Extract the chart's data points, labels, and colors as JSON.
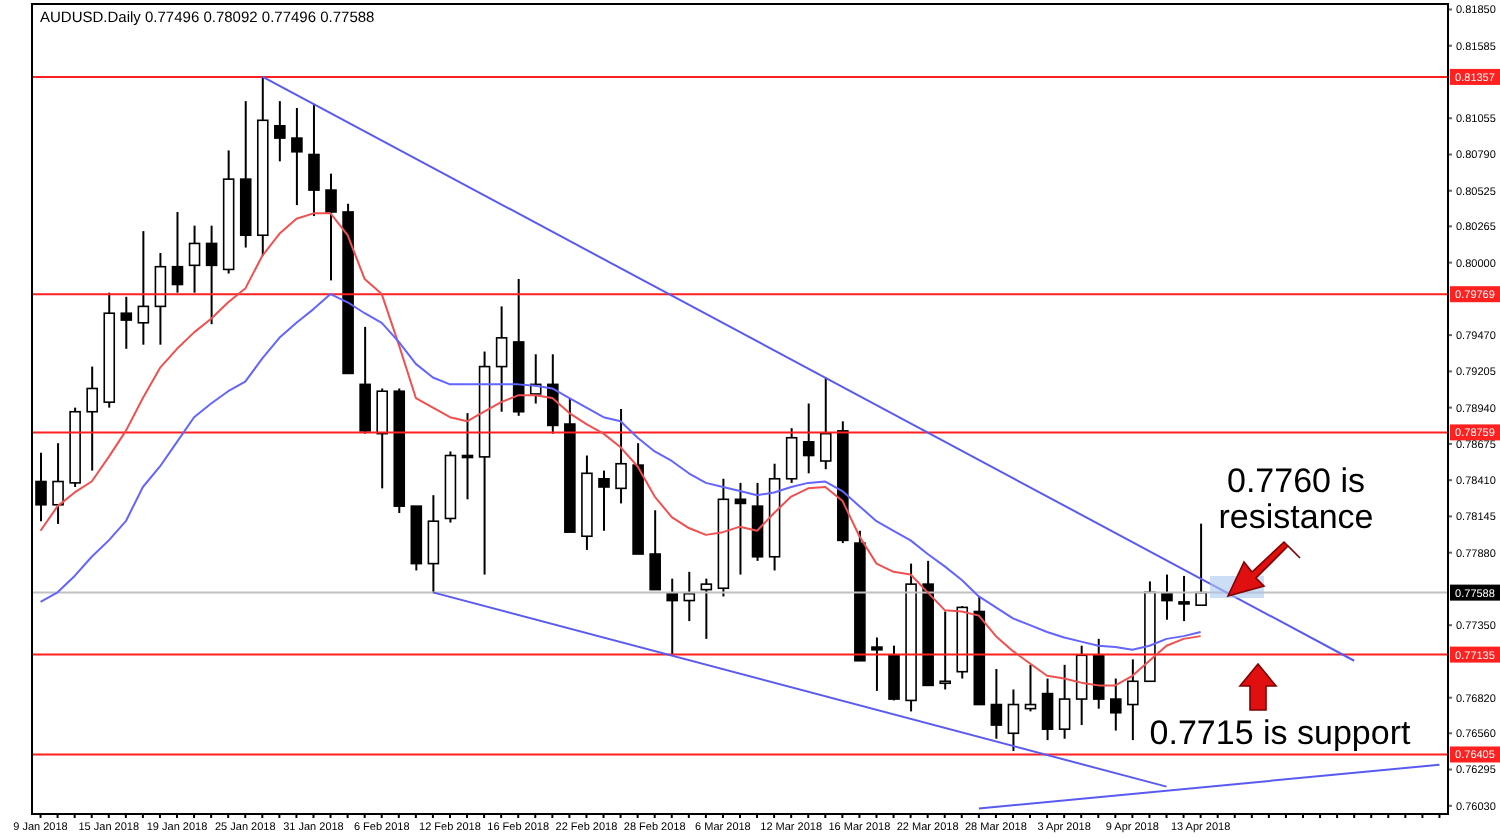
{
  "chart_data": {
    "type": "candlestick",
    "title": "AUDUSD.Daily 0.77496 0.78092 0.77496 0.77588",
    "categories": [
      "9 Jan 2018",
      null,
      null,
      null,
      "15 Jan 2018",
      null,
      null,
      null,
      "19 Jan 2018",
      null,
      null,
      null,
      "25 Jan 2018",
      null,
      null,
      null,
      "31 Jan 2018",
      null,
      null,
      null,
      "6 Feb 2018",
      null,
      null,
      null,
      "12 Feb 2018",
      null,
      null,
      null,
      "16 Feb 2018",
      null,
      null,
      null,
      "22 Feb 2018",
      null,
      null,
      null,
      "28 Feb 2018",
      null,
      null,
      null,
      "6 Mar 2018",
      null,
      null,
      null,
      "12 Mar 2018",
      null,
      null,
      null,
      "16 Mar 2018",
      null,
      null,
      null,
      "22 Mar 2018",
      null,
      null,
      null,
      "28 Mar 2018",
      null,
      null,
      null,
      "3 Apr 2018",
      null,
      null,
      null,
      "9 Apr 2018",
      null,
      null,
      null,
      "13 Apr 2018",
      null,
      null,
      null,
      null,
      null,
      null,
      null,
      null,
      null,
      null,
      null,
      null,
      null,
      null
    ],
    "ohlc": [
      [
        0.784,
        0.7861,
        0.7811,
        0.7823
      ],
      [
        0.7823,
        0.7868,
        0.7809,
        0.784
      ],
      [
        0.7839,
        0.7894,
        0.7836,
        0.7891
      ],
      [
        0.7891,
        0.7924,
        0.7848,
        0.7908
      ],
      [
        0.7898,
        0.7978,
        0.7894,
        0.7963
      ],
      [
        0.7963,
        0.7975,
        0.7937,
        0.7958
      ],
      [
        0.7956,
        0.8023,
        0.794,
        0.7968
      ],
      [
        0.7968,
        0.8007,
        0.794,
        0.7997
      ],
      [
        0.7997,
        0.8037,
        0.7978,
        0.7984
      ],
      [
        0.7998,
        0.8027,
        0.7978,
        0.8014
      ],
      [
        0.8014,
        0.8027,
        0.7955,
        0.7998
      ],
      [
        0.7995,
        0.8082,
        0.7992,
        0.8061
      ],
      [
        0.8061,
        0.8118,
        0.8011,
        0.802
      ],
      [
        0.802,
        0.8136,
        0.8005,
        0.8104
      ],
      [
        0.81,
        0.8118,
        0.8074,
        0.8091
      ],
      [
        0.8091,
        0.8113,
        0.8042,
        0.8081
      ],
      [
        0.8079,
        0.8116,
        0.8034,
        0.8053
      ],
      [
        0.8053,
        0.8065,
        0.7987,
        0.8037
      ],
      [
        0.8037,
        0.8043,
        0.7919,
        0.7919
      ],
      [
        0.7911,
        0.7953,
        0.7875,
        0.7877
      ],
      [
        0.7875,
        0.7908,
        0.7835,
        0.7906
      ],
      [
        0.7906,
        0.7908,
        0.7817,
        0.7822
      ],
      [
        0.7822,
        0.7822,
        0.7775,
        0.778
      ],
      [
        0.778,
        0.783,
        0.7759,
        0.7811
      ],
      [
        0.7813,
        0.7862,
        0.781,
        0.7859
      ],
      [
        0.7859,
        0.789,
        0.7827,
        0.7858
      ],
      [
        0.7858,
        0.7935,
        0.7772,
        0.7924
      ],
      [
        0.7924,
        0.7968,
        0.7891,
        0.7945
      ],
      [
        0.7942,
        0.7988,
        0.7888,
        0.7891
      ],
      [
        0.7904,
        0.7933,
        0.7897,
        0.7911
      ],
      [
        0.7911,
        0.7933,
        0.7875,
        0.7881
      ],
      [
        0.7882,
        0.7901,
        0.7803,
        0.7803
      ],
      [
        0.78,
        0.7859,
        0.779,
        0.7846
      ],
      [
        0.7842,
        0.7848,
        0.7804,
        0.7836
      ],
      [
        0.7835,
        0.7893,
        0.7824,
        0.7853
      ],
      [
        0.7852,
        0.7868,
        0.7787,
        0.7787
      ],
      [
        0.7787,
        0.7819,
        0.7761,
        0.7761
      ],
      [
        0.7758,
        0.7769,
        0.7713,
        0.7753
      ],
      [
        0.7753,
        0.7774,
        0.7738,
        0.7758
      ],
      [
        0.7761,
        0.7769,
        0.7725,
        0.7765
      ],
      [
        0.7762,
        0.7842,
        0.7756,
        0.7827
      ],
      [
        0.7827,
        0.7839,
        0.7772,
        0.7824
      ],
      [
        0.7822,
        0.7839,
        0.7782,
        0.7785
      ],
      [
        0.7785,
        0.7853,
        0.7775,
        0.7842
      ],
      [
        0.7842,
        0.7879,
        0.7839,
        0.7872
      ],
      [
        0.7869,
        0.7897,
        0.7846,
        0.7859
      ],
      [
        0.7855,
        0.7916,
        0.7849,
        0.7875
      ],
      [
        0.7877,
        0.7884,
        0.7795,
        0.7797
      ],
      [
        0.7795,
        0.7804,
        0.7709,
        0.7709
      ],
      [
        0.7719,
        0.7726,
        0.7687,
        0.7717
      ],
      [
        0.7713,
        0.772,
        0.768,
        0.7681
      ],
      [
        0.768,
        0.778,
        0.7672,
        0.7765
      ],
      [
        0.7765,
        0.7782,
        0.7691,
        0.7691
      ],
      [
        0.7693,
        0.7745,
        0.7688,
        0.7694
      ],
      [
        0.7701,
        0.7749,
        0.7696,
        0.7748
      ],
      [
        0.7745,
        0.7756,
        0.7677,
        0.7677
      ],
      [
        0.7677,
        0.7703,
        0.7652,
        0.7662
      ],
      [
        0.7656,
        0.7688,
        0.7643,
        0.7677
      ],
      [
        0.7674,
        0.7706,
        0.7672,
        0.7677
      ],
      [
        0.7685,
        0.7696,
        0.7651,
        0.7659
      ],
      [
        0.7659,
        0.7706,
        0.7652,
        0.7681
      ],
      [
        0.7681,
        0.772,
        0.7662,
        0.7713
      ],
      [
        0.7713,
        0.7725,
        0.7674,
        0.7681
      ],
      [
        0.7681,
        0.7696,
        0.7658,
        0.7671
      ],
      [
        0.7677,
        0.771,
        0.7651,
        0.7694
      ],
      [
        0.7694,
        0.7767,
        0.7694,
        0.7759
      ],
      [
        0.7758,
        0.7772,
        0.7739,
        0.7753
      ],
      [
        0.7752,
        0.7771,
        0.7738,
        0.7751
      ],
      [
        0.77496,
        0.78092,
        0.77496,
        0.77588
      ],
      null,
      null,
      null,
      null,
      null,
      null,
      null,
      null,
      null,
      null,
      null,
      null,
      null,
      null
    ],
    "series": [
      {
        "type": "line",
        "color": "#f05050",
        "values": [
          0.7804,
          0.7822,
          0.7832,
          0.784,
          0.7858,
          0.7877,
          0.7901,
          0.7923,
          0.7937,
          0.7949,
          0.7959,
          0.7971,
          0.7981,
          0.8005,
          0.8021,
          0.8032,
          0.8036,
          0.8036,
          0.802,
          0.7988,
          0.7977,
          0.794,
          0.7901,
          0.7894,
          0.7887,
          0.7884,
          0.7891,
          0.7898,
          0.7903,
          0.7903,
          0.7901,
          0.789,
          0.7882,
          0.7875,
          0.7865,
          0.7851,
          0.7829,
          0.7814,
          0.7806,
          0.7801,
          0.7803,
          0.7807,
          0.7804,
          0.7817,
          0.7829,
          0.7835,
          0.7836,
          0.7826,
          0.78,
          0.778,
          0.7774,
          0.7772,
          0.7759,
          0.7746,
          0.7745,
          0.7742,
          0.7727,
          0.7716,
          0.7707,
          0.7698,
          0.7696,
          0.7693,
          0.7691,
          0.7691,
          0.7698,
          0.7709,
          0.772,
          0.7725,
          0.7727,
          null,
          null,
          null,
          null,
          null,
          null,
          null,
          null,
          null,
          null,
          null,
          null,
          null,
          null
        ]
      },
      {
        "type": "line",
        "color": "#6464ff",
        "values": [
          0.7752,
          0.7759,
          0.7771,
          0.7785,
          0.7797,
          0.7811,
          0.7836,
          0.7851,
          0.7869,
          0.7887,
          0.7897,
          0.7906,
          0.7913,
          0.793,
          0.7945,
          0.7956,
          0.7966,
          0.7977,
          0.7971,
          0.7963,
          0.7956,
          0.7942,
          0.7926,
          0.7916,
          0.7911,
          0.7911,
          0.7911,
          0.7911,
          0.7911,
          0.791,
          0.7908,
          0.7901,
          0.7894,
          0.7887,
          0.7884,
          0.7872,
          0.7862,
          0.7855,
          0.7846,
          0.7839,
          0.7836,
          0.7833,
          0.783,
          0.7832,
          0.7836,
          0.7839,
          0.784,
          0.7833,
          0.7822,
          0.7811,
          0.7804,
          0.7797,
          0.7787,
          0.7778,
          0.7768,
          0.7756,
          0.7748,
          0.774,
          0.7735,
          0.773,
          0.7726,
          0.7723,
          0.772,
          0.7719,
          0.7717,
          0.772,
          0.7725,
          0.7727,
          0.773,
          null,
          null,
          null,
          null,
          null,
          null,
          null,
          null,
          null,
          null,
          null,
          null,
          null,
          null
        ]
      },
      {
        "type": "line",
        "color": "#5a5af0",
        "values": [
          null,
          null,
          null,
          null,
          null,
          null,
          null,
          null,
          null,
          null,
          null,
          null,
          null,
          0.8136,
          null,
          null,
          null,
          null,
          null,
          null,
          null,
          null,
          null,
          null,
          null,
          null,
          null,
          null,
          null,
          null,
          null,
          null,
          null,
          null,
          null,
          null,
          null,
          null,
          null,
          null,
          null,
          null,
          null,
          null,
          null,
          null,
          null,
          null,
          null,
          null,
          null,
          null,
          null,
          null,
          null,
          null,
          null,
          null,
          null,
          null,
          null,
          null,
          null,
          null,
          null,
          null,
          null,
          null,
          null,
          null,
          null,
          null,
          null,
          null,
          null,
          null,
          null,
          0.7709,
          null,
          null,
          null,
          null,
          null
        ]
      },
      {
        "type": "line",
        "color": "#5a5af0",
        "values": [
          null,
          null,
          null,
          null,
          null,
          null,
          null,
          null,
          null,
          null,
          null,
          null,
          null,
          null,
          null,
          null,
          null,
          null,
          null,
          null,
          null,
          null,
          null,
          0.7759,
          null,
          null,
          null,
          null,
          null,
          null,
          null,
          null,
          null,
          null,
          null,
          null,
          null,
          null,
          null,
          null,
          null,
          null,
          null,
          null,
          null,
          null,
          null,
          null,
          null,
          null,
          null,
          null,
          null,
          null,
          null,
          null,
          null,
          null,
          null,
          null,
          null,
          null,
          null,
          null,
          null,
          null,
          0.7617,
          null,
          null,
          null,
          null,
          null,
          null,
          null,
          null,
          null,
          null,
          null,
          null,
          null,
          null,
          null,
          null
        ]
      },
      {
        "type": "line",
        "color": "#5a5af0",
        "values": [
          null,
          null,
          null,
          null,
          null,
          null,
          null,
          null,
          null,
          null,
          null,
          null,
          null,
          null,
          null,
          null,
          null,
          null,
          null,
          null,
          null,
          null,
          null,
          null,
          null,
          null,
          null,
          null,
          null,
          null,
          null,
          null,
          null,
          null,
          null,
          null,
          null,
          null,
          null,
          null,
          null,
          null,
          null,
          null,
          null,
          null,
          null,
          null,
          null,
          null,
          null,
          null,
          null,
          null,
          null,
          0.7601,
          null,
          null,
          null,
          null,
          null,
          null,
          null,
          null,
          null,
          null,
          null,
          null,
          null,
          null,
          null,
          null,
          null,
          null,
          null,
          null,
          null,
          null,
          null,
          null,
          null,
          null,
          0.7633
        ]
      }
    ],
    "ylim": [
      0.7597,
      0.8189
    ],
    "yticks": [
      {
        "value": 0.8185,
        "label": "0.81850"
      },
      {
        "value": 0.81585,
        "label": "0.81585"
      },
      {
        "value": 0.81055,
        "label": "0.81055"
      },
      {
        "value": 0.8079,
        "label": "0.80790"
      },
      {
        "value": 0.80525,
        "label": "0.80525"
      },
      {
        "value": 0.80265,
        "label": "0.80265"
      },
      {
        "value": 0.8,
        "label": "0.80000"
      },
      {
        "value": 0.7947,
        "label": "0.79470"
      },
      {
        "value": 0.79205,
        "label": "0.79205"
      },
      {
        "value": 0.7894,
        "label": "0.78940"
      },
      {
        "value": 0.78675,
        "label": "0.78675"
      },
      {
        "value": 0.7841,
        "label": "0.78410"
      },
      {
        "value": 0.78145,
        "label": "0.78145"
      },
      {
        "value": 0.7788,
        "label": "0.77880"
      },
      {
        "value": 0.7735,
        "label": "0.77350"
      },
      {
        "value": 0.7682,
        "label": "0.76820"
      },
      {
        "value": 0.7656,
        "label": "0.76560"
      },
      {
        "value": 0.76295,
        "label": "0.76295"
      },
      {
        "value": 0.7603,
        "label": "0.76030"
      }
    ],
    "ref_lines": [
      {
        "axis": "y",
        "value": 0.81357,
        "label": "0.81357",
        "color": "#ff2020"
      },
      {
        "axis": "y",
        "value": 0.79769,
        "label": "0.79769",
        "color": "#ff2020"
      },
      {
        "axis": "y",
        "value": 0.78759,
        "label": "0.78759",
        "color": "#ff2020"
      },
      {
        "axis": "y",
        "value": 0.77588,
        "label": "0.77588",
        "color": "#c0c0c0"
      },
      {
        "axis": "y",
        "value": 0.77135,
        "label": "0.77135",
        "color": "#ff2020"
      },
      {
        "axis": "y",
        "value": 0.76405,
        "label": "0.76405",
        "color": "#ff2020"
      }
    ],
    "annotations": [
      "0.7760 is resistance",
      "0.7715 is support"
    ]
  }
}
